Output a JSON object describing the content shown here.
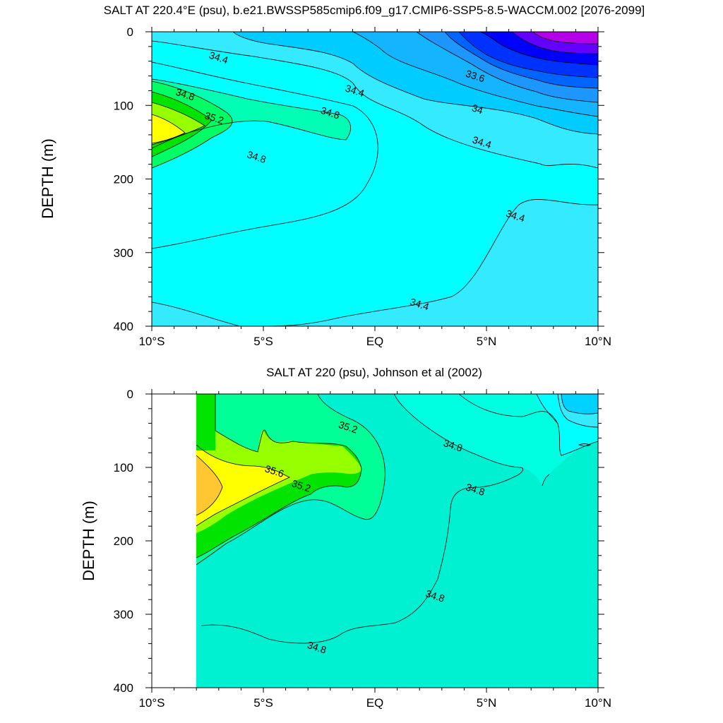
{
  "chart_data": [
    {
      "type": "contour",
      "title": "SALT AT 220.4°E (psu), b.e21.BWSSP585cmip6.f09_g17.CMIP6-SSP5-8.5-WACCM.002 [2076-2099]",
      "ylabel": "DEPTH (m)",
      "xlabel": "",
      "x_ticks": [
        "10°S",
        "5°S",
        "EQ",
        "5°N",
        "10°N"
      ],
      "x_values": [
        -10,
        -5,
        0,
        5,
        10
      ],
      "y_ticks": [
        "0",
        "100",
        "200",
        "300",
        "400"
      ],
      "y_values": [
        0,
        100,
        200,
        300,
        400
      ],
      "xlim": [
        -10,
        10
      ],
      "ylim": [
        400,
        0
      ],
      "contour_interval": 0.2,
      "data_xlim": [
        -10,
        10
      ],
      "contour_labels": [
        {
          "text": "34.4",
          "x": -7.0,
          "y": 35
        },
        {
          "text": "34.8",
          "x": -8.5,
          "y": 85
        },
        {
          "text": "35.2",
          "x": -7.2,
          "y": 117
        },
        {
          "text": "34.8",
          "x": -2.0,
          "y": 110
        },
        {
          "text": "34.8",
          "x": -5.3,
          "y": 170
        },
        {
          "text": "34.4",
          "x": -0.9,
          "y": 80
        },
        {
          "text": "33.6",
          "x": 4.5,
          "y": 60
        },
        {
          "text": "34",
          "x": 4.6,
          "y": 105
        },
        {
          "text": "34.4",
          "x": 4.8,
          "y": 150
        },
        {
          "text": "34.4",
          "x": 6.3,
          "y": 250
        },
        {
          "text": "34.4",
          "x": 2.0,
          "y": 370
        }
      ]
    },
    {
      "type": "contour",
      "title": "SALT AT 220 (psu), Johnson et al (2002)",
      "ylabel": "DEPTH (m)",
      "xlabel": "",
      "x_ticks": [
        "10°S",
        "5°S",
        "EQ",
        "5°N",
        "10°N"
      ],
      "x_values": [
        -10,
        -5,
        0,
        5,
        10
      ],
      "y_ticks": [
        "0",
        "100",
        "200",
        "300",
        "400"
      ],
      "y_values": [
        0,
        100,
        200,
        300,
        400
      ],
      "xlim": [
        -10,
        10
      ],
      "ylim": [
        400,
        0
      ],
      "contour_interval": 0.2,
      "data_xlim": [
        -8,
        10
      ],
      "contour_labels": [
        {
          "text": "35.2",
          "x": -1.2,
          "y": 45
        },
        {
          "text": "35.6",
          "x": -4.5,
          "y": 105
        },
        {
          "text": "35.2",
          "x": -3.3,
          "y": 125
        },
        {
          "text": "34.8",
          "x": 3.5,
          "y": 70
        },
        {
          "text": "34.8",
          "x": 4.5,
          "y": 130
        },
        {
          "text": "34.8",
          "x": 2.7,
          "y": 275
        },
        {
          "text": "34.8",
          "x": -2.6,
          "y": 345
        }
      ]
    }
  ]
}
